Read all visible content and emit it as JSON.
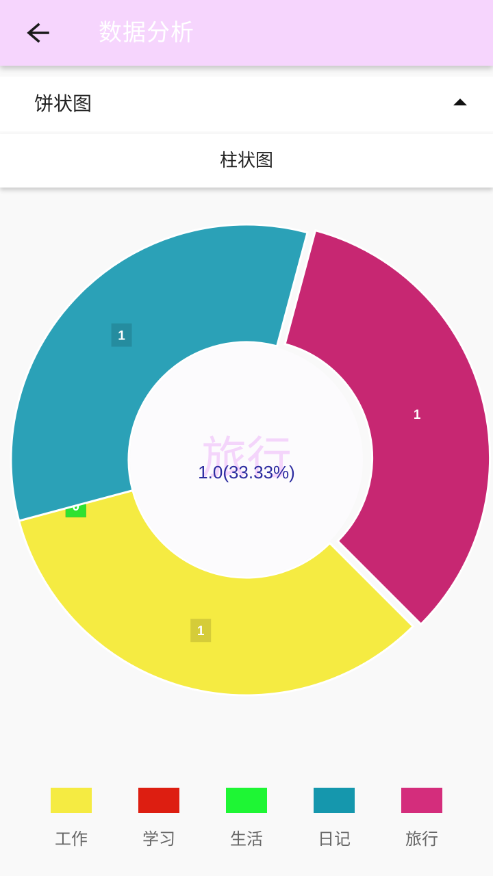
{
  "header": {
    "title": "数据分析"
  },
  "selector": {
    "selected": "饼状图",
    "options": [
      "柱状图"
    ]
  },
  "chart_data": {
    "type": "pie",
    "style": "donut",
    "categories": [
      "工作",
      "学习",
      "生活",
      "日记",
      "旅行"
    ],
    "values": [
      1,
      0,
      0,
      1,
      1
    ],
    "value_labels": [
      "1",
      "0",
      "0",
      "1",
      "1"
    ],
    "colors": [
      "#f5eb42",
      "#dd1e11",
      "#1ef634",
      "#2ba1b7",
      "#c72772"
    ],
    "legend_colors": [
      "#f5eb42",
      "#dd1e11",
      "#1ef634",
      "#1597ad",
      "#d42d7c"
    ],
    "highlighted_category": "旅行",
    "center_title": "旅行",
    "center_value": "1.0(33.33%)",
    "legend_position": "bottom"
  }
}
